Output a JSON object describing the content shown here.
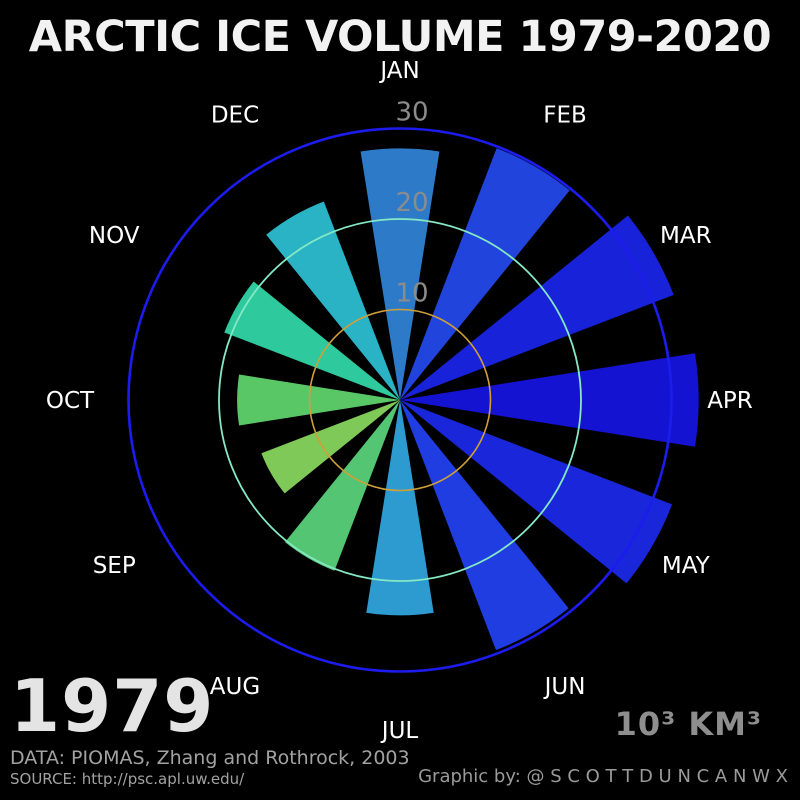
{
  "title": "ARCTIC ICE VOLUME 1979-2020",
  "year": "1979",
  "unit_label": "10³ KM³",
  "footer": {
    "data_line": "DATA: PIOMAS, Zhang and Rothrock, 2003",
    "source_line": "SOURCE: http://psc.apl.uw.edu/",
    "credit_line": "Graphic by: @ S C O T T D U N C A N W X"
  },
  "colors": {
    "background": "#000000",
    "title_text": "#f2f2f2",
    "month_label_text": "#ffffff",
    "tick_label_text": "#8c8c8c",
    "year_text": "#e4e4e4",
    "footer_text": "#a2a2a2",
    "unit_text": "#8e8e8e"
  },
  "chart_data": {
    "type": "bar",
    "subtype": "polar-radial-bar",
    "title": "ARCTIC ICE VOLUME 1979-2020",
    "series_name": "Arctic sea ice volume, year 1979",
    "unit": "10³ km³",
    "categories": [
      "JAN",
      "FEB",
      "MAR",
      "APR",
      "MAY",
      "JUN",
      "JUL",
      "AUG",
      "SEP",
      "OCT",
      "NOV",
      "DEC"
    ],
    "values": [
      27.8,
      29.8,
      32.4,
      33.0,
      32.2,
      29.6,
      23.8,
      20.2,
      16.4,
      18.0,
      20.8,
      23.5
    ],
    "bar_colors": [
      "#2d7ac9",
      "#2144dc",
      "#1822d8",
      "#1513d2",
      "#1a26da",
      "#1f3de0",
      "#2d9bd0",
      "#53c573",
      "#7ec957",
      "#5ac767",
      "#2fc99e",
      "#29b3c5"
    ],
    "rings": [
      {
        "value": 10,
        "label": "10",
        "color": "#d0a038",
        "width": 1.6
      },
      {
        "value": 20,
        "label": "20",
        "color": "#85e8c5",
        "width": 1.8
      },
      {
        "value": 30,
        "label": "30",
        "color": "#1c1cee",
        "width": 2.6
      }
    ],
    "rlim": [
      0,
      33
    ],
    "start_angle": "top",
    "direction": "clockwise",
    "bar_width_deg": 18,
    "grid": "circular rings only, no radial spokes",
    "legend": "none"
  }
}
